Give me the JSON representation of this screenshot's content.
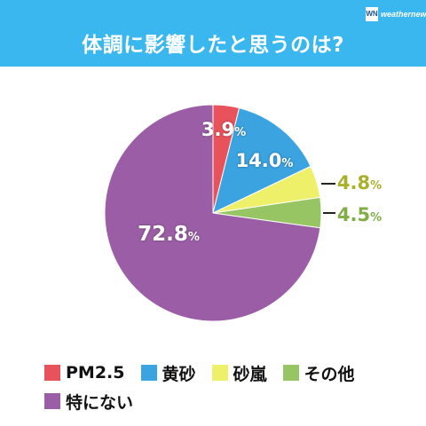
{
  "header": {
    "title": "体調に影響したと思うのは?",
    "logo_mark": "WN",
    "logo_text": "weathernews"
  },
  "chart_data": {
    "type": "pie",
    "title": "体調に影響したと思うのは?",
    "categories": [
      "PM2.5",
      "黄砂",
      "砂嵐",
      "その他",
      "特にない"
    ],
    "values": [
      3.9,
      14.0,
      4.8,
      4.5,
      72.8
    ],
    "value_labels": [
      "3.9",
      "14.0",
      "4.8",
      "4.5",
      "72.8"
    ],
    "unit": "%",
    "colors": [
      "#e8525a",
      "#3aa3e0",
      "#eef06a",
      "#97c564",
      "#9b5ea6"
    ],
    "label_colors": [
      "#ffffff",
      "#ffffff",
      "#a9b12a",
      "#7fae47",
      "#ffffff"
    ],
    "legend": "bottom",
    "start_angle_deg": 0,
    "direction": "clockwise"
  }
}
